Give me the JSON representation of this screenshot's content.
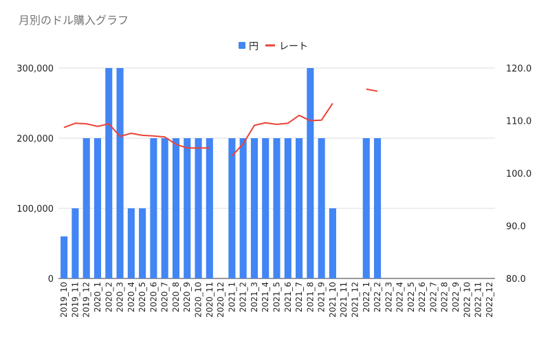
{
  "chart_data": {
    "type": "bar",
    "title": "月別のドル購入グラフ",
    "categories": [
      "2019_10",
      "2019_11",
      "2019_12",
      "2020_1",
      "2020_2",
      "2020_3",
      "2020_4",
      "2020_5",
      "2020_6",
      "2020_7",
      "2020_8",
      "2020_9",
      "2020_10",
      "2020_11",
      "2020_12",
      "2021_1",
      "2021_2",
      "2021_3",
      "2021_4",
      "2021_5",
      "2021_6",
      "2021_7",
      "2021_8",
      "2021_9",
      "2021_10",
      "2021_11",
      "2021_12",
      "2022_1",
      "2022_2",
      "2022_3",
      "2022_4",
      "2022_5",
      "2022_6",
      "2022_7",
      "2022_8",
      "2022_9",
      "2022_10",
      "2022_11",
      "2022_12"
    ],
    "series": [
      {
        "name": "円",
        "type": "bar",
        "axis": "left",
        "color": "#4285f4",
        "values": [
          60000,
          100000,
          200000,
          200000,
          300000,
          300000,
          100000,
          100000,
          200000,
          200000,
          200000,
          200000,
          200000,
          200000,
          null,
          200000,
          200000,
          200000,
          200000,
          200000,
          200000,
          200000,
          300000,
          200000,
          100000,
          null,
          null,
          200000,
          200000,
          null,
          null,
          null,
          null,
          null,
          null,
          null,
          null,
          null,
          null
        ]
      },
      {
        "name": "レート",
        "type": "line",
        "axis": "right",
        "color": "#ea4335",
        "values": [
          108.7,
          109.5,
          109.4,
          108.9,
          109.4,
          107.0,
          107.6,
          107.2,
          107.1,
          106.9,
          105.5,
          104.8,
          104.8,
          104.8,
          null,
          103.3,
          105.6,
          109.1,
          109.6,
          109.3,
          109.5,
          111.0,
          110.0,
          110.1,
          113.3,
          null,
          null,
          116.0,
          115.6,
          null,
          null,
          null,
          null,
          null,
          null,
          null,
          null,
          null,
          null
        ]
      }
    ],
    "ylim_left": [
      0,
      300000
    ],
    "ylim_right": [
      80,
      120
    ],
    "yticks_left": [
      "0",
      "100,000",
      "200,000",
      "300,000"
    ],
    "yticks_right": [
      "80.0",
      "90.0",
      "100.0",
      "110.0",
      "120.0"
    ],
    "legend_position": "top",
    "grid": true
  }
}
